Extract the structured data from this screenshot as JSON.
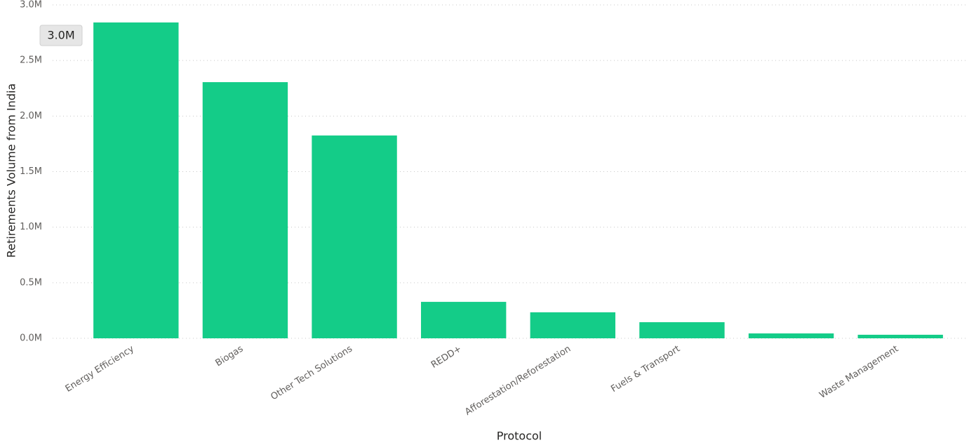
{
  "chart_data": {
    "type": "bar",
    "x_label": "Protocol",
    "y_label": "Retirements Volume from India",
    "annotation": "3.0M",
    "categories": [
      "Energy Efficiency",
      "Biogas",
      "Other Tech Solutions",
      "REDD+",
      "Afforestation/Reforestation",
      "Fuels & Transport",
      null,
      "Waste Management"
    ],
    "values": [
      2842000,
      2305000,
      1825000,
      328000,
      234000,
      145000,
      44000,
      32000
    ],
    "color": "#14cc88",
    "ylim": [
      0,
      3000000
    ],
    "yticks": [
      {
        "value": 0,
        "label": "0.0M"
      },
      {
        "value": 500000,
        "label": "0.5M"
      },
      {
        "value": 1000000,
        "label": "1.0M"
      },
      {
        "value": 1500000,
        "label": "1.5M"
      },
      {
        "value": 2000000,
        "label": "2.0M"
      },
      {
        "value": 2500000,
        "label": "2.5M"
      },
      {
        "value": 3000000,
        "label": "3.0M"
      }
    ],
    "grid": true
  }
}
